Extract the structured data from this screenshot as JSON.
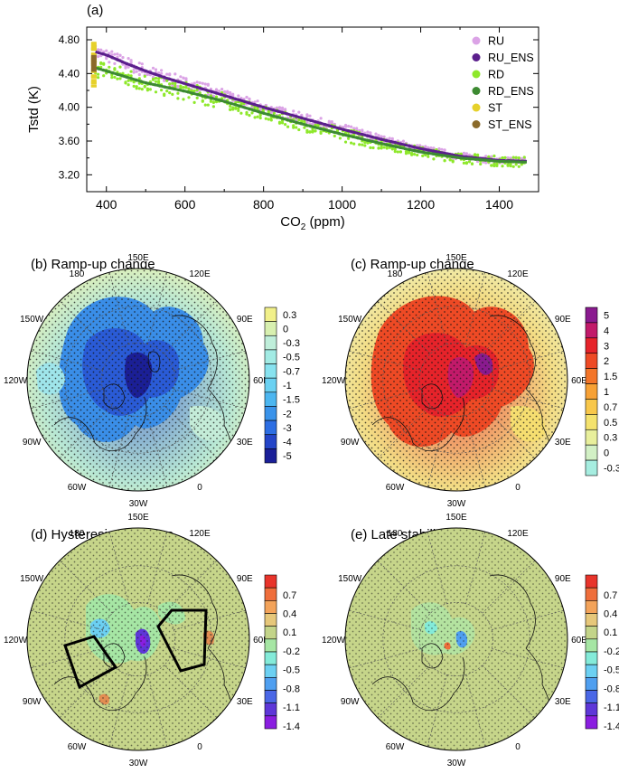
{
  "chart_data": [
    {
      "panel": "(a)",
      "type": "scatter",
      "xlabel": "CO",
      "xlabel_sub": "2",
      "xlabel_unit": " (ppm)",
      "ylabel": "Tstd (K)",
      "xlim": [
        350,
        1500
      ],
      "ylim": [
        3.0,
        4.95
      ],
      "xticks": [
        400,
        600,
        800,
        1000,
        1200,
        1400
      ],
      "yticks": [
        3.2,
        3.6,
        4.0,
        4.4,
        4.8
      ],
      "ytick_labels": [
        "3.20",
        "3.60",
        "4.00",
        "4.40",
        "4.80"
      ],
      "legend_position": "top-right",
      "legend": [
        {
          "name": "RU",
          "color": "#dba3e6"
        },
        {
          "name": "RU_ENS",
          "color": "#5b1f8c"
        },
        {
          "name": "RD",
          "color": "#8ee82b"
        },
        {
          "name": "RD_ENS",
          "color": "#3d8a32"
        },
        {
          "name": "ST",
          "color": "#e6d12b"
        },
        {
          "name": "ST_ENS",
          "color": "#8a6a2a"
        }
      ],
      "series": [
        {
          "name": "RU_ENS",
          "color": "#5b1f8c",
          "x": [
            370,
            400,
            450,
            500,
            550,
            600,
            650,
            700,
            800,
            900,
            1000,
            1100,
            1200,
            1300,
            1400,
            1470
          ],
          "y": [
            4.66,
            4.62,
            4.52,
            4.43,
            4.35,
            4.28,
            4.21,
            4.14,
            4.0,
            3.87,
            3.74,
            3.62,
            3.51,
            3.42,
            3.37,
            3.36
          ],
          "spread": 0.08
        },
        {
          "name": "RD_ENS",
          "color": "#3d8a32",
          "x": [
            370,
            400,
            450,
            500,
            550,
            600,
            650,
            700,
            800,
            900,
            1000,
            1100,
            1200,
            1300,
            1400,
            1470
          ],
          "y": [
            4.47,
            4.43,
            4.36,
            4.29,
            4.24,
            4.19,
            4.13,
            4.07,
            3.93,
            3.8,
            3.68,
            3.57,
            3.47,
            3.4,
            3.36,
            3.35
          ],
          "spread": 0.12
        },
        {
          "name": "ST_ENS",
          "color": "#8a6a2a",
          "x": [
            368
          ],
          "y": [
            4.52
          ],
          "spread": 0.28
        }
      ]
    },
    {
      "panel": "(b)",
      "title": "Ramp-up change",
      "type": "heatmap",
      "colorbar": {
        "labels": [
          "0.3",
          "0",
          "-0.3",
          "-0.5",
          "-0.7",
          "-1",
          "-1.5",
          "-2",
          "-3",
          "-4",
          "-5"
        ],
        "colors": [
          "#f1f08a",
          "#d8f0b0",
          "#bfeeda",
          "#a2ebe4",
          "#87e2ef",
          "#6ad1f2",
          "#4cb6f0",
          "#3a93ea",
          "#2d6ee3",
          "#2445c8",
          "#1a1f98"
        ]
      },
      "lon_labels": [
        "150E",
        "120E",
        "90E",
        "60E",
        "30E",
        "0",
        "30W",
        "60W",
        "90W",
        "120W",
        "150W",
        "180"
      ]
    },
    {
      "panel": "(c)",
      "title": "Ramp-up change",
      "type": "heatmap",
      "colorbar": {
        "labels": [
          "5",
          "4",
          "3",
          "2",
          "1.5",
          "1",
          "0.7",
          "0.5",
          "0.3",
          "0",
          "-0.3"
        ],
        "colors": [
          "#8a1a8f",
          "#c21a6a",
          "#e6232a",
          "#ee4a25",
          "#f37529",
          "#f7a135",
          "#f8c74a",
          "#f4e26d",
          "#e8ef9c",
          "#d2f0c5",
          "#a6ede0"
        ]
      },
      "lon_labels": [
        "150E",
        "120E",
        "90E",
        "60E",
        "30E",
        "0",
        "30W",
        "60W",
        "90W",
        "120W",
        "150W",
        "180"
      ]
    },
    {
      "panel": "(d)",
      "title": "Hysteresis response",
      "type": "heatmap",
      "colorbar": {
        "labels": [
          "0.7",
          "0.4",
          "0.1",
          "-0.2",
          "-0.5",
          "-0.8",
          "-1.1",
          "-1.4"
        ],
        "colors": [
          "#e8342b",
          "#ef6e3b",
          "#f3a35a",
          "#e6c77a",
          "#c3d489",
          "#a6e6a4",
          "#84ebd9",
          "#6cd0f2",
          "#4f9ff0",
          "#4a67e6",
          "#5e37d8",
          "#8a1ee0"
        ]
      },
      "lon_labels": [
        "150E",
        "120E",
        "90E",
        "60E",
        "30E",
        "0",
        "30W",
        "60W",
        "90W",
        "120W",
        "150W",
        "180"
      ]
    },
    {
      "panel": "(e)",
      "title": "Late stabilization",
      "type": "heatmap",
      "colorbar": {
        "labels": [
          "0.7",
          "0.4",
          "0.1",
          "-0.2",
          "-0.5",
          "-0.8",
          "-1.1",
          "-1.4"
        ],
        "colors": [
          "#e8342b",
          "#ef6e3b",
          "#f3a35a",
          "#e6c77a",
          "#c3d489",
          "#a6e6a4",
          "#84ebd9",
          "#6cd0f2",
          "#4f9ff0",
          "#4a67e6",
          "#5e37d8",
          "#8a1ee0"
        ]
      },
      "lon_labels": [
        "150E",
        "120E",
        "90E",
        "60E",
        "30E",
        "0",
        "30W",
        "60W",
        "90W",
        "120W",
        "150W",
        "180"
      ]
    }
  ]
}
